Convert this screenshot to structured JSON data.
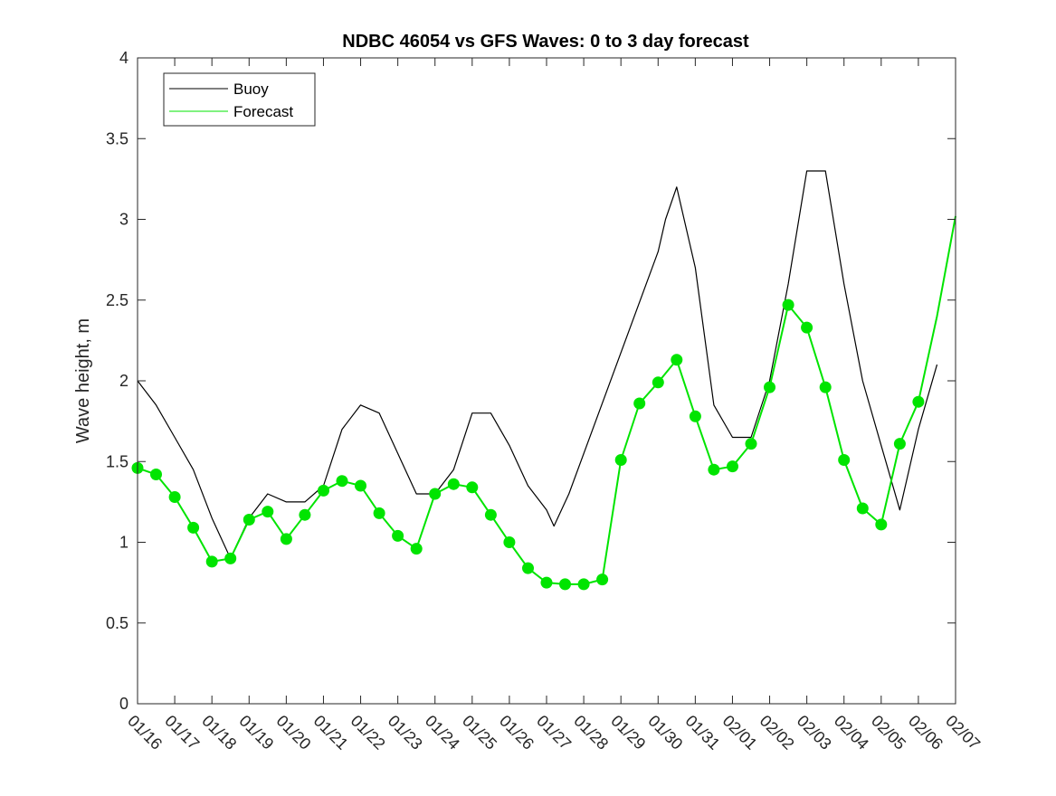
{
  "chart_data": {
    "type": "line",
    "title": "NDBC 46054 vs GFS Waves: 0 to 3 day forecast",
    "xlabel": "",
    "ylabel": "Wave height, m",
    "xlim": [
      0,
      22
    ],
    "ylim": [
      0,
      4
    ],
    "grid": false,
    "legend_position": "top-left",
    "x_tick_labels": [
      "01/16",
      "01/17",
      "01/18",
      "01/19",
      "01/20",
      "01/21",
      "01/22",
      "01/23",
      "01/24",
      "01/25",
      "01/26",
      "01/27",
      "01/28",
      "01/29",
      "01/30",
      "01/31",
      "02/01",
      "02/02",
      "02/03",
      "02/04",
      "02/05",
      "02/06",
      "02/07"
    ],
    "y_tick_labels": [
      "0",
      "0.5",
      "1",
      "1.5",
      "2",
      "2.5",
      "3",
      "3.5",
      "4"
    ],
    "y_ticks": [
      0,
      0.5,
      1,
      1.5,
      2,
      2.5,
      3,
      3.5,
      4
    ],
    "series": [
      {
        "name": "Buoy",
        "color": "#000000",
        "x": [
          0,
          0.5,
          1,
          1.5,
          2,
          2.5,
          3,
          3.5,
          4,
          4.5,
          5,
          5.5,
          6,
          6.5,
          7,
          7.5,
          8,
          8.5,
          9,
          9.5,
          10,
          10.5,
          11,
          11.2,
          11.6,
          14.0,
          14.2,
          14.5,
          15,
          15.5,
          16,
          16.5,
          17,
          17.5,
          18,
          18.5,
          19,
          19.5,
          20,
          20.5,
          21,
          21.5
        ],
        "y": [
          2.0,
          1.85,
          1.65,
          1.45,
          1.15,
          0.9,
          1.15,
          1.3,
          1.25,
          1.25,
          1.35,
          1.7,
          1.85,
          1.8,
          1.55,
          1.3,
          1.3,
          1.45,
          1.8,
          1.8,
          1.6,
          1.35,
          1.2,
          1.1,
          1.3,
          2.8,
          3.0,
          3.2,
          2.7,
          1.85,
          1.65,
          1.65,
          2.0,
          2.6,
          3.3,
          3.3,
          2.6,
          2.0,
          1.6,
          1.2,
          1.7,
          2.1
        ]
      },
      {
        "name": "Forecast",
        "color": "#00e400",
        "x": [
          0,
          0.5,
          1,
          1.5,
          2,
          2.5,
          3,
          3.5,
          4,
          4.5,
          5,
          5.5,
          6,
          6.5,
          7,
          7.5,
          8,
          8.5,
          9,
          9.5,
          10,
          10.5,
          11,
          11.5,
          12,
          12.5,
          13,
          13.5,
          14,
          14.5,
          15,
          15.5,
          16,
          16.5,
          17,
          17.5,
          18,
          18.5,
          19,
          19.5,
          20,
          20.5,
          21,
          21.5,
          22
        ],
        "y": [
          1.46,
          1.42,
          1.28,
          1.09,
          0.88,
          0.9,
          1.14,
          1.19,
          1.02,
          1.17,
          1.32,
          1.38,
          1.35,
          1.18,
          1.04,
          0.96,
          1.3,
          1.36,
          1.34,
          1.17,
          1.0,
          0.84,
          0.75,
          0.74,
          0.74,
          0.77,
          1.51,
          1.86,
          1.99,
          2.13,
          1.78,
          1.45,
          1.47,
          1.61,
          1.96,
          2.47,
          2.33,
          1.96,
          1.51,
          1.21,
          1.11,
          1.61,
          1.87,
          2.4,
          3.02
        ]
      }
    ],
    "markers": {
      "name": "Forecast",
      "x": [
        0,
        0.5,
        1,
        1.5,
        2,
        2.5,
        3,
        3.5,
        4,
        4.5,
        5,
        5.5,
        6,
        6.5,
        7,
        7.5,
        8,
        8.5,
        9,
        9.5,
        10,
        10.5,
        11,
        11.5,
        12,
        12.5,
        13,
        13.5,
        14,
        14.5,
        15,
        15.5,
        16,
        16.5,
        17,
        17.5,
        18,
        18.5,
        19,
        19.5,
        20,
        20.5,
        21
      ],
      "y": [
        1.46,
        1.42,
        1.28,
        1.09,
        0.88,
        0.9,
        1.14,
        1.19,
        1.02,
        1.17,
        1.32,
        1.38,
        1.35,
        1.18,
        1.04,
        0.96,
        1.3,
        1.36,
        1.34,
        1.17,
        1.0,
        0.84,
        0.75,
        0.74,
        0.74,
        0.77,
        1.51,
        1.86,
        1.99,
        2.13,
        1.78,
        1.45,
        1.47,
        1.61,
        1.96,
        2.47,
        2.33,
        1.96,
        1.51,
        1.21,
        1.11,
        1.61,
        1.87
      ]
    }
  }
}
